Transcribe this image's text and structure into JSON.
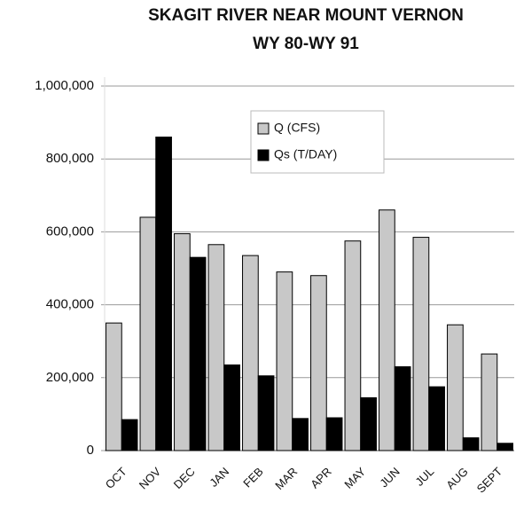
{
  "chart_data": {
    "type": "bar",
    "title": "SKAGIT RIVER NEAR MOUNT VERNON",
    "subtitle": "WY 80-WY 91",
    "categories": [
      "OCT",
      "NOV",
      "DEC",
      "JAN",
      "FEB",
      "MAR",
      "APR",
      "MAY",
      "JUN",
      "JUL",
      "AUG",
      "SEPT"
    ],
    "series": [
      {
        "name": "Q (CFS)",
        "color": "#c8c8c8",
        "values": [
          350000,
          640000,
          595000,
          565000,
          535000,
          490000,
          480000,
          575000,
          660000,
          585000,
          345000,
          265000
        ]
      },
      {
        "name": "Qs (T/DAY)",
        "color": "#000000",
        "values": [
          85000,
          860000,
          530000,
          235000,
          205000,
          88000,
          90000,
          145000,
          230000,
          175000,
          35000,
          20000
        ]
      }
    ],
    "ylim": [
      0,
      1000000
    ],
    "yticks": [
      0,
      {
        "value": 200000,
        "label": "200,000"
      },
      {
        "value": 400000,
        "label": "400,000"
      },
      {
        "value": 600000,
        "label": "600,000"
      },
      {
        "value": 800000,
        "label": "800,000"
      },
      {
        "value": 1000000,
        "label": "1,000,000"
      }
    ],
    "grid": true,
    "legend": "top"
  }
}
